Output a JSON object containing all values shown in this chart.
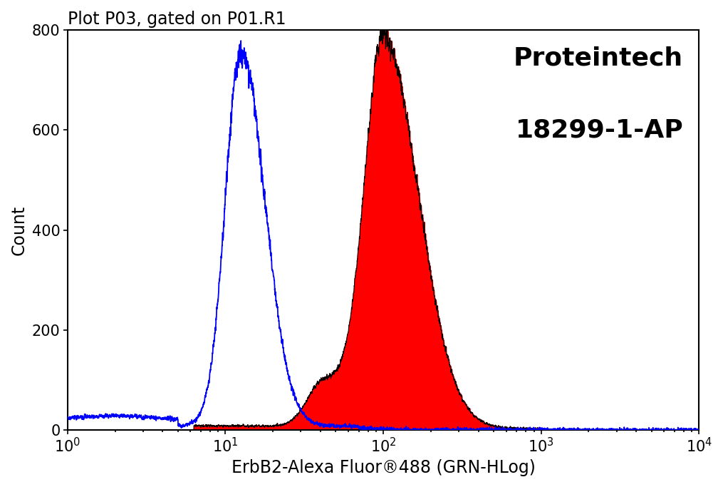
{
  "title": "Plot P03, gated on P01.R1",
  "xlabel": "ErbB2-Alexa Fluor®488 (GRN-HLog)",
  "ylabel": "Count",
  "xlim": [
    1,
    10000
  ],
  "ylim": [
    0,
    800
  ],
  "yticks": [
    0,
    200,
    400,
    600,
    800
  ],
  "brand_line1": "Proteintech",
  "brand_line2": "18299-1-AP",
  "blue_color": "#0000ff",
  "red_fill_color": "#ff0000",
  "black_outline_color": "#000000",
  "background_color": "#ffffff",
  "title_fontsize": 17,
  "label_fontsize": 17,
  "brand_fontsize": 26,
  "tick_fontsize": 15
}
